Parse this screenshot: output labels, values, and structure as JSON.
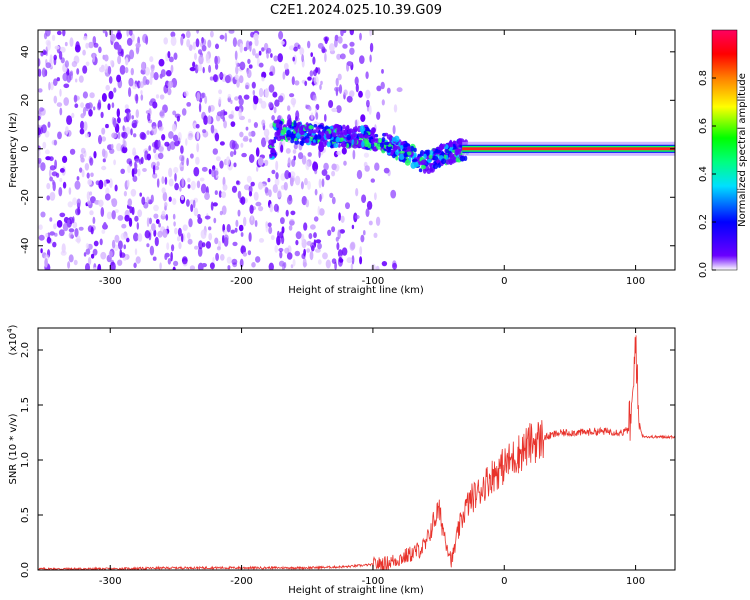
{
  "title": "C2E1.2024.025.10.39.G09",
  "chart_data": [
    {
      "type": "heatmap",
      "xlabel": "Height of straight line (km)",
      "ylabel": "Frequency (Hz)",
      "xlim": [
        -355,
        130
      ],
      "ylim": [
        -50,
        49
      ],
      "xticks": [
        -300,
        -200,
        -100,
        0,
        100
      ],
      "xtick_labels": [
        "-300",
        "-200",
        "-100",
        "0",
        "100"
      ],
      "yticks": [
        -40,
        -20,
        0,
        20,
        40
      ],
      "ytick_labels": [
        "-40",
        "-20",
        "0",
        "20",
        "40"
      ],
      "colorbar": {
        "label": "Normalized spectral amplitude",
        "range": [
          0,
          1
        ],
        "ticks": [
          0.0,
          0.2,
          0.4,
          0.6,
          0.8
        ],
        "tick_labels": [
          "0.0",
          "0.2",
          "0.4",
          "0.6",
          "0.8"
        ],
        "colors": [
          "#ffffff",
          "#6a00ff",
          "#0000ff",
          "#00e0ff",
          "#00ff00",
          "#ffff00",
          "#ff8000",
          "#ff0000",
          "#ff0060"
        ]
      },
      "regions": [
        {
          "name": "noise",
          "x_range": [
            -355,
            -100
          ],
          "freq_range": [
            -50,
            49
          ],
          "amplitude": 0.05
        },
        {
          "name": "signal",
          "x_range": [
            -175,
            130
          ],
          "amplitude": 0.9
        }
      ],
      "signal_track": [
        {
          "x": -175,
          "freq": 8
        },
        {
          "x": -150,
          "freq": 6
        },
        {
          "x": -120,
          "freq": 5
        },
        {
          "x": -100,
          "freq": 4
        },
        {
          "x": -80,
          "freq": 0
        },
        {
          "x": -60,
          "freq": -6
        },
        {
          "x": -45,
          "freq": -2
        },
        {
          "x": -30,
          "freq": 0
        },
        {
          "x": 0,
          "freq": 0
        },
        {
          "x": 130,
          "freq": 0
        }
      ],
      "grid": false
    },
    {
      "type": "line",
      "xlabel": "Height of straight line (km)",
      "ylabel": "SNR (10 * v/v)",
      "y_multiplier_label": "(x10",
      "y_multiplier_exp": "4",
      "xlim": [
        -355,
        130
      ],
      "ylim": [
        0,
        2.2
      ],
      "xticks": [
        -300,
        -200,
        -100,
        0,
        100
      ],
      "xtick_labels": [
        "-300",
        "-200",
        "-100",
        "0",
        "100"
      ],
      "yticks": [
        0.0,
        0.5,
        1.0,
        1.5,
        2.0
      ],
      "ytick_labels": [
        "0.0",
        "0.5",
        "1.0",
        "1.5",
        "2.0"
      ],
      "series": [
        {
          "color": "#e8322b",
          "x": [
            -355,
            -300,
            -250,
            -200,
            -150,
            -120,
            -100,
            -90,
            -80,
            -70,
            -60,
            -55,
            -50,
            -45,
            -40,
            -35,
            -30,
            -25,
            -20,
            -15,
            -10,
            -5,
            0,
            10,
            20,
            30,
            40,
            50,
            60,
            70,
            80,
            90,
            95,
            98,
            100,
            102,
            105,
            110,
            120,
            130
          ],
          "y": [
            0.01,
            0.01,
            0.02,
            0.02,
            0.02,
            0.03,
            0.05,
            0.06,
            0.1,
            0.15,
            0.22,
            0.4,
            0.55,
            0.3,
            0.08,
            0.35,
            0.55,
            0.65,
            0.7,
            0.78,
            0.85,
            0.9,
            0.95,
            1.05,
            1.15,
            1.2,
            1.24,
            1.25,
            1.25,
            1.26,
            1.26,
            1.25,
            1.28,
            1.5,
            2.2,
            1.4,
            1.22,
            1.21,
            1.21,
            1.21
          ]
        }
      ],
      "grid": false
    }
  ]
}
